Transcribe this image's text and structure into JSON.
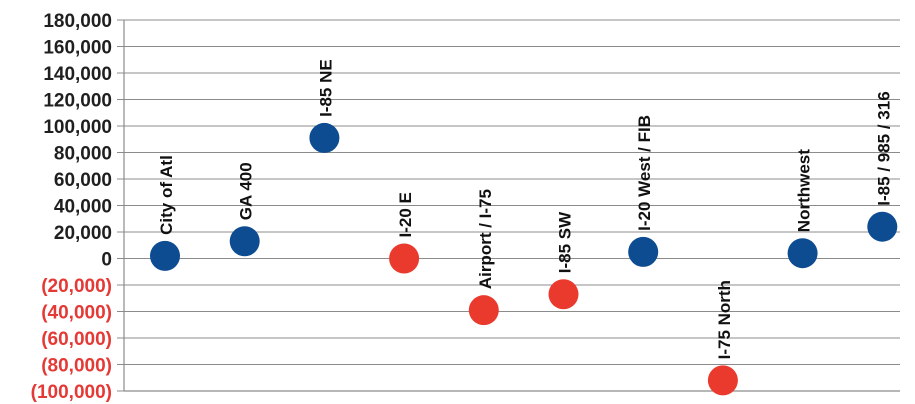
{
  "chart_data": {
    "type": "scatter",
    "categories": [
      "City of Atl",
      "GA 400",
      "I-85 NE",
      "I-20 E",
      "Airport / I-75",
      "I-85 SW",
      "I-20 West / FIB",
      "I-75 North",
      "Northwest",
      "I-85 / 985 / 316"
    ],
    "values": [
      2000,
      13000,
      91000,
      0,
      -39000,
      -27000,
      5000,
      -92000,
      4000,
      24000
    ],
    "ylim": [
      -100000,
      180000
    ],
    "yticks": [
      180000,
      160000,
      140000,
      120000,
      100000,
      80000,
      60000,
      40000,
      20000,
      0,
      -20000,
      -40000,
      -60000,
      -80000,
      -100000
    ],
    "ytick_labels": [
      "180,000",
      "160,000",
      "140,000",
      "120,000",
      "100,000",
      "80,000",
      "60,000",
      "40,000",
      "20,000",
      "0",
      "(20,000)",
      "(40,000)",
      "(60,000)",
      "(80,000)",
      "(100,000)"
    ],
    "grid": true,
    "colors": {
      "positive_point": "#0e4c92",
      "negative_point": "#ea3a2d",
      "positive_tick": "#1f1f1f",
      "negative_tick": "#e53935",
      "grid": "#8c8c8c",
      "axis": "#8c8c8c",
      "label": "#111111"
    }
  }
}
